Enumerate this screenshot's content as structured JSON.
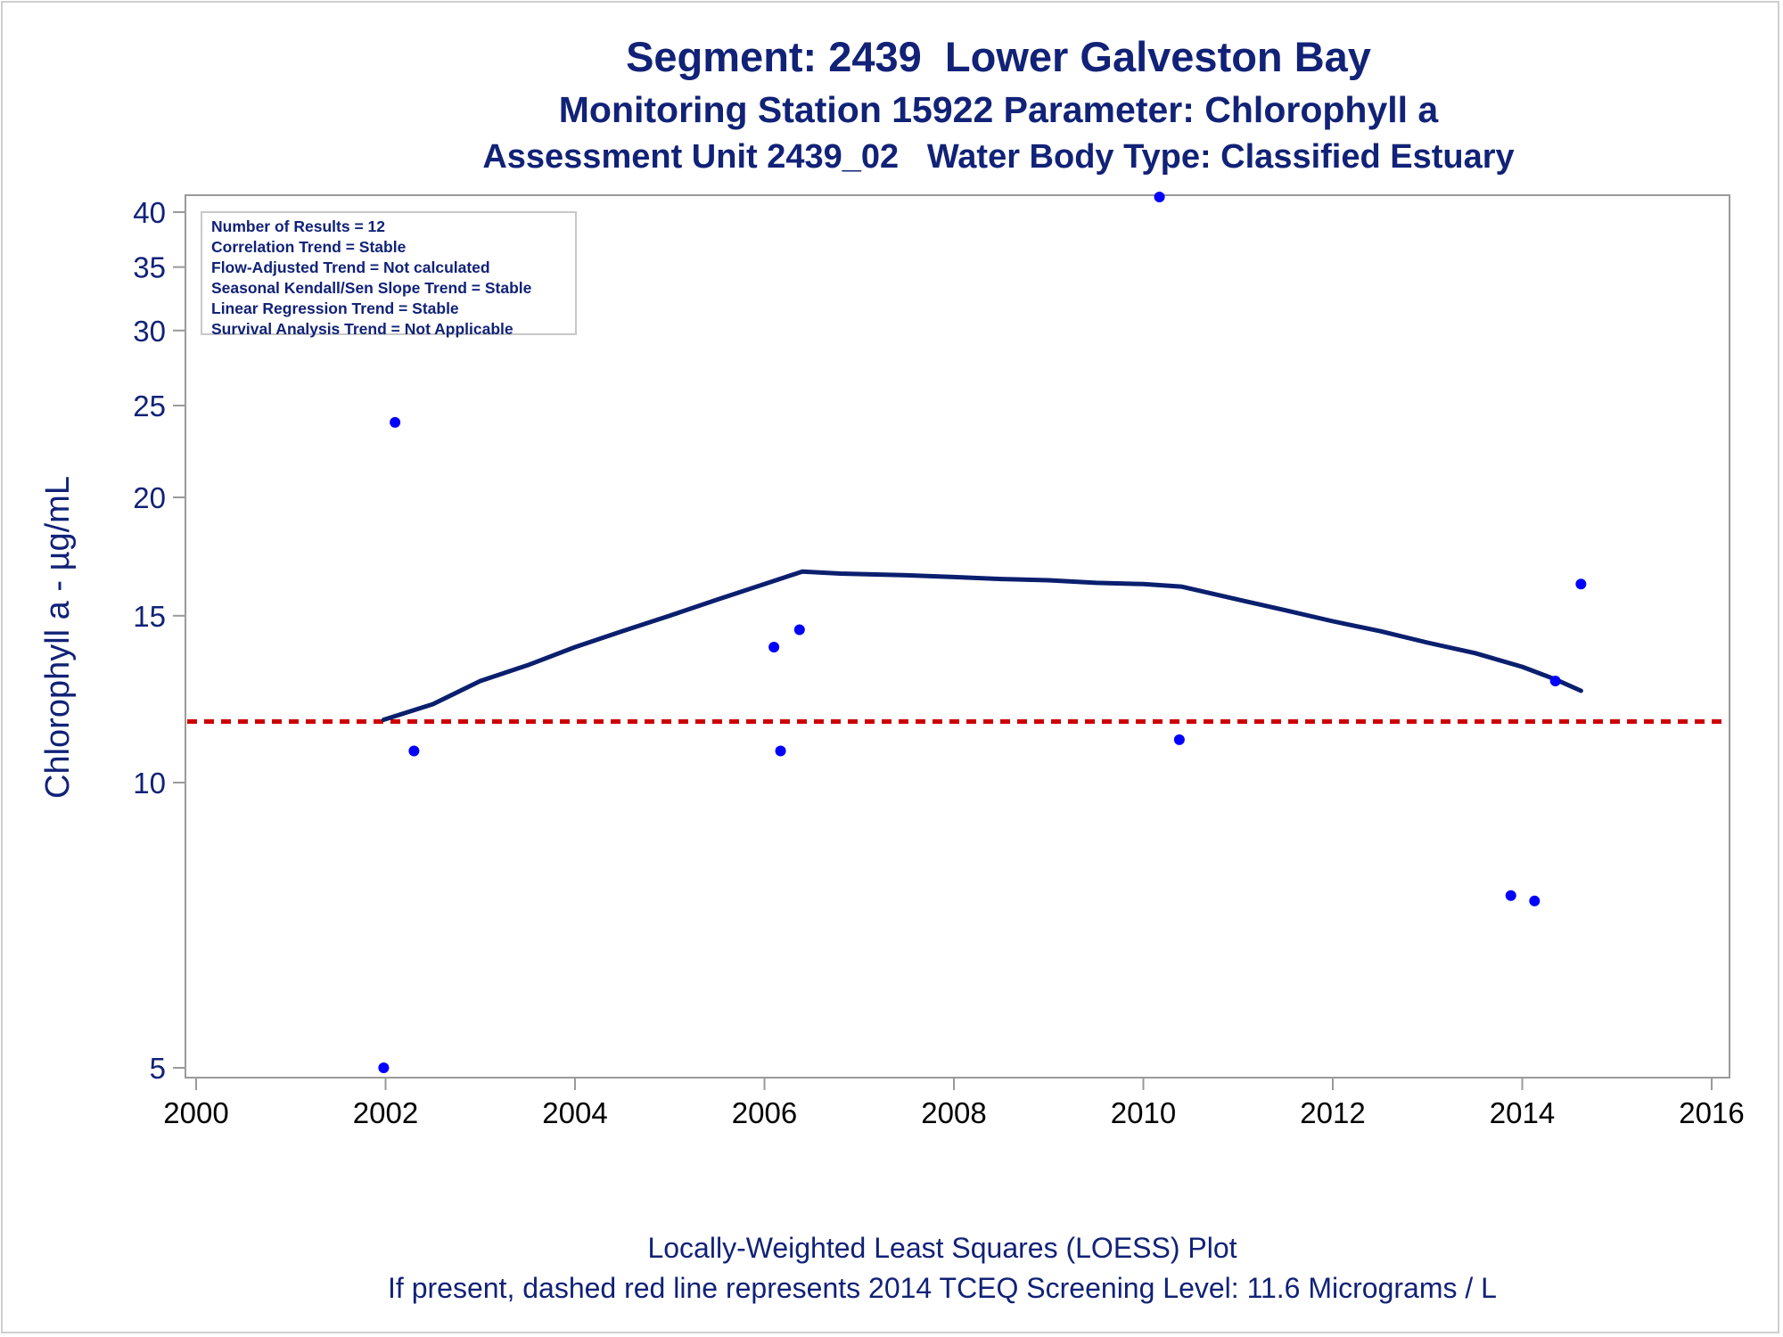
{
  "titles": {
    "line1": "Segment: 2439  Lower Galveston Bay",
    "line2": "Monitoring Station 15922 Parameter: Chlorophyll a",
    "line3": "Assessment Unit 2439_02   Water Body Type: Classified Estuary"
  },
  "footnotes": {
    "line1": "Locally-Weighted Least Squares (LOESS) Plot",
    "line2": "If present, dashed red line represents 2014 TCEQ Screening Level: 11.6 Micrograms / L"
  },
  "info": {
    "lines": [
      "Number of Results = 12",
      "Correlation Trend = Stable",
      "Flow-Adjusted Trend = Not calculated",
      "Seasonal Kendall/Sen Slope Trend = Stable",
      "Linear Regression Trend = Stable",
      "Survival Analysis Trend = Not Applicable"
    ]
  },
  "colors": {
    "text": "#112277",
    "points": "#0000ff",
    "loess": "#0a1f6e",
    "screening": "#cc0000",
    "axis": "#9a9a9a"
  },
  "chart_data": {
    "type": "scatter",
    "title": "Segment: 2439  Lower Galveston Bay",
    "xlabel": "",
    "ylabel": "Chlorophyll a -  µg/mL",
    "x_scale": "linear",
    "y_scale": "log",
    "xlim": [
      2000,
      2016
    ],
    "ylim": [
      4.85,
      42.5
    ],
    "x_ticks": [
      2000,
      2002,
      2004,
      2006,
      2008,
      2010,
      2012,
      2014,
      2016
    ],
    "y_ticks": [
      5,
      10,
      15,
      20,
      25,
      30,
      35,
      40
    ],
    "grid": false,
    "points": [
      {
        "x": 2001.98,
        "y": 5.0
      },
      {
        "x": 2002.1,
        "y": 24.0
      },
      {
        "x": 2002.3,
        "y": 10.8
      },
      {
        "x": 2006.1,
        "y": 13.9
      },
      {
        "x": 2006.17,
        "y": 10.8
      },
      {
        "x": 2006.37,
        "y": 14.5
      },
      {
        "x": 2010.17,
        "y": 41.5
      },
      {
        "x": 2010.38,
        "y": 11.1
      },
      {
        "x": 2013.88,
        "y": 7.6
      },
      {
        "x": 2014.13,
        "y": 7.5
      },
      {
        "x": 2014.35,
        "y": 12.8
      },
      {
        "x": 2014.62,
        "y": 16.2
      }
    ],
    "loess": [
      {
        "x": 2001.98,
        "y": 11.65
      },
      {
        "x": 2002.5,
        "y": 12.1
      },
      {
        "x": 2003.0,
        "y": 12.8
      },
      {
        "x": 2003.5,
        "y": 13.3
      },
      {
        "x": 2004.0,
        "y": 13.9
      },
      {
        "x": 2004.5,
        "y": 14.45
      },
      {
        "x": 2005.0,
        "y": 15.0
      },
      {
        "x": 2005.5,
        "y": 15.6
      },
      {
        "x": 2006.0,
        "y": 16.2
      },
      {
        "x": 2006.4,
        "y": 16.7
      },
      {
        "x": 2006.8,
        "y": 16.62
      },
      {
        "x": 2007.5,
        "y": 16.55
      },
      {
        "x": 2008.0,
        "y": 16.48
      },
      {
        "x": 2008.5,
        "y": 16.4
      },
      {
        "x": 2009.0,
        "y": 16.35
      },
      {
        "x": 2009.5,
        "y": 16.25
      },
      {
        "x": 2010.0,
        "y": 16.2
      },
      {
        "x": 2010.4,
        "y": 16.1
      },
      {
        "x": 2011.0,
        "y": 15.6
      },
      {
        "x": 2011.5,
        "y": 15.2
      },
      {
        "x": 2012.0,
        "y": 14.8
      },
      {
        "x": 2012.5,
        "y": 14.45
      },
      {
        "x": 2013.0,
        "y": 14.05
      },
      {
        "x": 2013.5,
        "y": 13.7
      },
      {
        "x": 2014.0,
        "y": 13.25
      },
      {
        "x": 2014.35,
        "y": 12.85
      },
      {
        "x": 2014.62,
        "y": 12.5
      }
    ],
    "screening_level": 11.6
  }
}
